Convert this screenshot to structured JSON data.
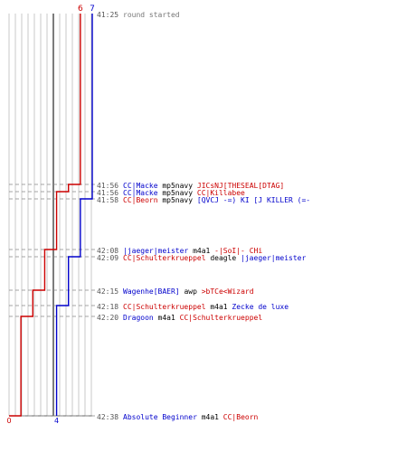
{
  "chart_data": {
    "type": "line",
    "axis": {
      "time_ticks": [
        "41:25",
        "41:56",
        "41:56",
        "41:58",
        "42:08",
        "42:09",
        "42:15",
        "42:18",
        "42:20",
        "42:38"
      ]
    },
    "series": [
      {
        "name_color": "blue",
        "start_label": "7",
        "end_label": "4",
        "values": [
          7,
          7,
          7,
          6,
          6,
          5,
          5,
          4,
          4,
          4
        ]
      },
      {
        "name_color": "red",
        "start_label": "6",
        "end_label": "0",
        "values": [
          6,
          5,
          4,
          4,
          3,
          3,
          2,
          2,
          1,
          0
        ]
      }
    ],
    "timeline_events": [
      {
        "time": "41:25",
        "parts": [
          {
            "text": "round started",
            "color": "gray"
          }
        ]
      },
      {
        "time": "41:56",
        "parts": [
          {
            "text": "CC|Macke",
            "color": "blue"
          },
          {
            "text": " mp5navy ",
            "color": "black"
          },
          {
            "text": "JICsNJ[THESEAL[DTAG]",
            "color": "red"
          }
        ]
      },
      {
        "time": "41:56",
        "parts": [
          {
            "text": "CC|Macke",
            "color": "blue"
          },
          {
            "text": " mp5navy ",
            "color": "black"
          },
          {
            "text": "CC|Killabee",
            "color": "red"
          }
        ]
      },
      {
        "time": "41:58",
        "parts": [
          {
            "text": "CC|Beorn",
            "color": "red"
          },
          {
            "text": " mp5navy ",
            "color": "black"
          },
          {
            "text": "[QVCJ -=) KI [J KILLER (=-",
            "color": "blue"
          }
        ]
      },
      {
        "time": "42:08",
        "parts": [
          {
            "text": "|jaeger|meister",
            "color": "blue"
          },
          {
            "text": " m4a1 ",
            "color": "black"
          },
          {
            "text": "-|SoI|- CHi",
            "color": "red"
          }
        ]
      },
      {
        "time": "42:09",
        "parts": [
          {
            "text": "CC|Schulterkrueppel",
            "color": "red"
          },
          {
            "text": " deagle ",
            "color": "black"
          },
          {
            "text": "|jaeger|meister",
            "color": "blue"
          }
        ]
      },
      {
        "time": "42:15",
        "parts": [
          {
            "text": "Wagenhe[BAER]",
            "color": "blue"
          },
          {
            "text": " awp ",
            "color": "black"
          },
          {
            "text": ">bTCe<Wizard",
            "color": "red"
          }
        ]
      },
      {
        "time": "42:18",
        "parts": [
          {
            "text": "CC|Schulterkrueppel",
            "color": "red"
          },
          {
            "text": " m4a1 ",
            "color": "black"
          },
          {
            "text": "Zecke de luxe",
            "color": "blue"
          }
        ]
      },
      {
        "time": "42:20",
        "parts": [
          {
            "text": "Dragoon",
            "color": "blue"
          },
          {
            "text": " m4a1 ",
            "color": "black"
          },
          {
            "text": "CC|Schulterkrueppel",
            "color": "red"
          }
        ]
      },
      {
        "time": "42:38",
        "parts": [
          {
            "text": "Absolute Beginner",
            "color": "blue"
          },
          {
            "text": " m4a1 ",
            "color": "black"
          },
          {
            "text": "CC|Beorn",
            "color": "red"
          }
        ]
      }
    ],
    "grid": true
  },
  "colors": {
    "blue": "#0000cc",
    "red": "#cc0000",
    "black": "#000000",
    "gray": "#777777",
    "grid": "#bbbbbb",
    "axis": "#666666",
    "baseline": "#444444",
    "dashed": "#888888",
    "timestamp": "#555555"
  }
}
